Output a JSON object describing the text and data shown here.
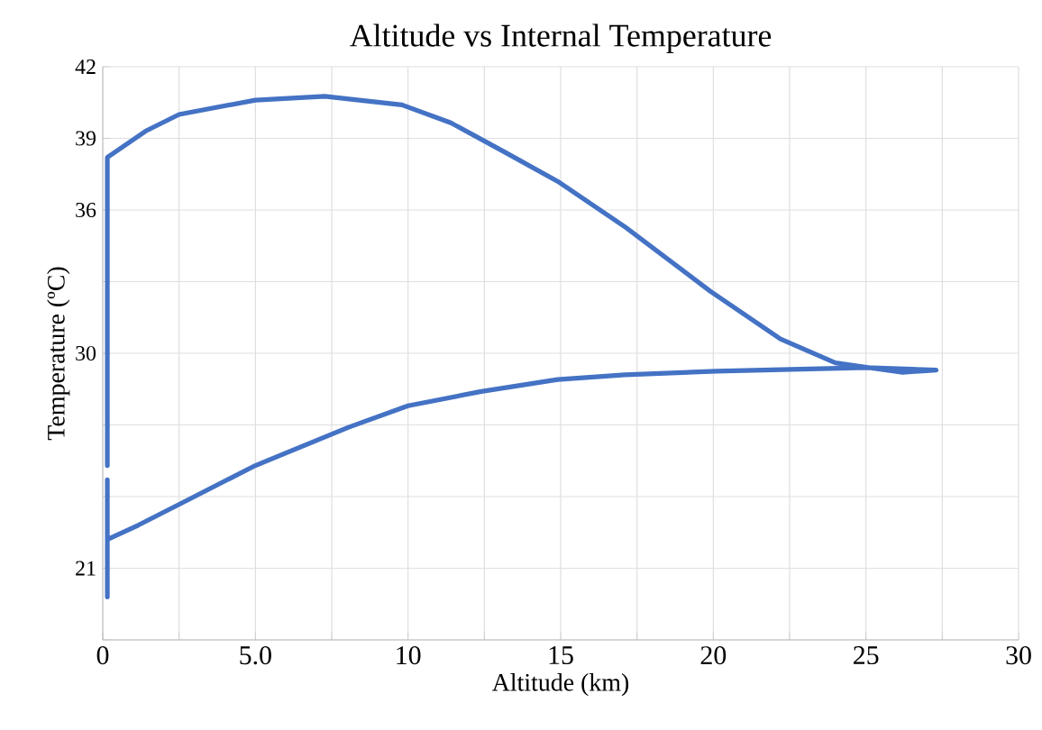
{
  "chart_data": {
    "type": "line",
    "title": "Altitude vs Internal Temperature",
    "xlabel": "Altitude (km)",
    "ylabel": "Temperature (ºC)",
    "xlim": [
      0,
      30
    ],
    "ylim": [
      18,
      42
    ],
    "xticks": [
      0,
      {
        "value": 2.5,
        "label": null
      },
      {
        "value": 5,
        "label": "5.0"
      },
      {
        "value": 7.5,
        "label": null
      },
      10,
      {
        "value": 12.5,
        "label": null
      },
      15,
      {
        "value": 17.5,
        "label": null
      },
      20,
      {
        "value": 22.5,
        "label": null
      },
      25,
      {
        "value": 27.5,
        "label": null
      },
      30
    ],
    "yticks": [
      {
        "value": 18,
        "label": null
      },
      21,
      {
        "value": 24,
        "label": null
      },
      {
        "value": 27,
        "label": null
      },
      30,
      {
        "value": 33,
        "label": null
      },
      36,
      39,
      42
    ],
    "grid": true,
    "marker": "none",
    "line_style": "solid",
    "series": [
      {
        "color": "#4472c4",
        "x": [
          0.15,
          0.15,
          null,
          0.15,
          0.15,
          1.4,
          2.5,
          5,
          7.27,
          9.8,
          11.4,
          13.2,
          14.9,
          17.1,
          19.9,
          22.2,
          24.0,
          26.2,
          27.3,
          25,
          20.1,
          17.1,
          14.9,
          12.4,
          10.0,
          8.05,
          5.0,
          2.54,
          1.16,
          0.15
        ],
        "values": [
          19.8,
          24.7,
          null,
          25.3,
          38.2,
          39.3,
          40.0,
          40.6,
          40.76,
          40.4,
          39.65,
          38.4,
          37.2,
          35.3,
          32.6,
          30.6,
          29.6,
          29.2,
          29.3,
          29.4,
          29.25,
          29.1,
          28.9,
          28.4,
          27.8,
          26.9,
          25.3,
          23.7,
          22.8,
          22.2
        ]
      }
    ]
  }
}
